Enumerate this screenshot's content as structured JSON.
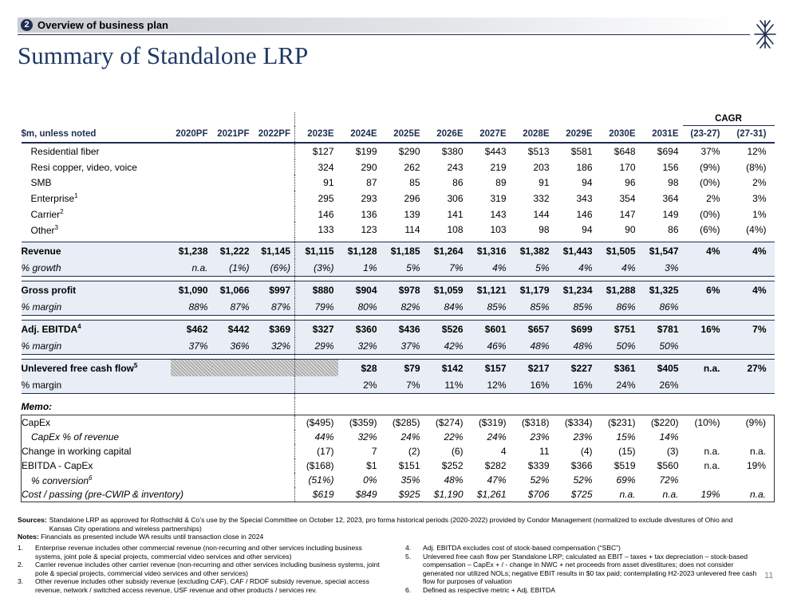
{
  "header": {
    "section_number": "2",
    "section": "Overview of business plan",
    "title": "Summary of Standalone LRP",
    "page_number": "11"
  },
  "table": {
    "cagr": "CAGR",
    "label": "$m, unless noted",
    "columns": [
      "2020PF",
      "2021PF",
      "2022PF",
      "2023E",
      "2024E",
      "2025E",
      "2026E",
      "2027E",
      "2028E",
      "2029E",
      "2030E",
      "2031E",
      "(23-27)",
      "(27-31)"
    ],
    "detail_rows": [
      {
        "label": "Residential fiber",
        "cells": [
          null,
          null,
          null,
          "$127",
          "$199",
          "$290",
          "$380",
          "$443",
          "$513",
          "$581",
          "$648",
          "$694",
          "37%",
          "12%"
        ]
      },
      {
        "label": "Resi copper, video, voice",
        "cells": [
          null,
          null,
          null,
          "324",
          "290",
          "262",
          "243",
          "219",
          "203",
          "186",
          "170",
          "156",
          "(9%)",
          "(8%)"
        ]
      },
      {
        "label": "SMB",
        "cells": [
          null,
          null,
          null,
          "91",
          "87",
          "85",
          "86",
          "89",
          "91",
          "94",
          "96",
          "98",
          "(0%)",
          "2%"
        ]
      },
      {
        "label": "Enterprise",
        "note": "1",
        "cells": [
          null,
          null,
          null,
          "295",
          "293",
          "296",
          "306",
          "319",
          "332",
          "343",
          "354",
          "364",
          "2%",
          "3%"
        ]
      },
      {
        "label": "Carrier",
        "note": "2",
        "cells": [
          null,
          null,
          null,
          "146",
          "136",
          "139",
          "141",
          "143",
          "144",
          "146",
          "147",
          "149",
          "(0%)",
          "1%"
        ]
      },
      {
        "label": "Other",
        "note": "3",
        "cells": [
          null,
          null,
          null,
          "133",
          "123",
          "114",
          "108",
          "103",
          "98",
          "94",
          "90",
          "86",
          "(6%)",
          "(4%)"
        ]
      }
    ],
    "summary_blocks": [
      [
        {
          "label": "Revenue",
          "cells": [
            "$1,238",
            "$1,222",
            "$1,145",
            "$1,115",
            "$1,128",
            "$1,185",
            "$1,264",
            "$1,316",
            "$1,382",
            "$1,443",
            "$1,505",
            "$1,547",
            "4%",
            "4%"
          ]
        },
        {
          "label": "% growth",
          "cells": [
            "n.a.",
            "(1%)",
            "(6%)",
            "(3%)",
            "1%",
            "5%",
            "7%",
            "4%",
            "5%",
            "4%",
            "4%",
            "3%",
            null,
            null
          ]
        }
      ],
      [
        {
          "label": "Gross profit",
          "cells": [
            "$1,090",
            "$1,066",
            "$997",
            "$880",
            "$904",
            "$978",
            "$1,059",
            "$1,121",
            "$1,179",
            "$1,234",
            "$1,288",
            "$1,325",
            "6%",
            "4%"
          ]
        },
        {
          "label": "% margin",
          "cells": [
            "88%",
            "87%",
            "87%",
            "79%",
            "80%",
            "82%",
            "84%",
            "85%",
            "85%",
            "85%",
            "86%",
            "86%",
            null,
            null
          ]
        }
      ],
      [
        {
          "label": "Adj. EBITDA",
          "note": "4",
          "cells": [
            "$462",
            "$442",
            "$369",
            "$327",
            "$360",
            "$436",
            "$526",
            "$601",
            "$657",
            "$699",
            "$751",
            "$781",
            "16%",
            "7%"
          ]
        },
        {
          "label": "% margin",
          "cells": [
            "37%",
            "36%",
            "32%",
            "29%",
            "32%",
            "37%",
            "42%",
            "46%",
            "48%",
            "48%",
            "50%",
            "50%",
            null,
            null
          ]
        }
      ],
      [
        {
          "label": "Unlevered free cash flow",
          "note": "5",
          "cells": [
            null,
            null,
            null,
            null,
            "$28",
            "$79",
            "$142",
            "$157",
            "$217",
            "$227",
            "$361",
            "$405",
            "n.a.",
            "27%"
          ]
        },
        {
          "label": "% margin",
          "cells": [
            null,
            null,
            null,
            null,
            "2%",
            "7%",
            "11%",
            "12%",
            "16%",
            "16%",
            "24%",
            "26%",
            null,
            null
          ]
        }
      ]
    ],
    "memo": {
      "label": "Memo:",
      "rows": [
        {
          "label": "CapEx",
          "cells": [
            null,
            null,
            null,
            "($495)",
            "($359)",
            "($285)",
            "($274)",
            "($319)",
            "($318)",
            "($334)",
            "($231)",
            "($220)",
            "(10%)",
            "(9%)"
          ]
        },
        {
          "label": "CapEx % of revenue",
          "cells": [
            null,
            null,
            null,
            "44%",
            "32%",
            "24%",
            "22%",
            "24%",
            "23%",
            "23%",
            "15%",
            "14%",
            null,
            null
          ]
        },
        {
          "label": "Change in working capital",
          "cells": [
            null,
            null,
            null,
            "(17)",
            "7",
            "(2)",
            "(6)",
            "4",
            "11",
            "(4)",
            "(15)",
            "(3)",
            "n.a.",
            "n.a."
          ]
        },
        {
          "label": "EBITDA - CapEx",
          "cells": [
            null,
            null,
            null,
            "($168)",
            "$1",
            "$151",
            "$252",
            "$282",
            "$339",
            "$366",
            "$519",
            "$560",
            "n.a.",
            "19%"
          ]
        },
        {
          "label": "% conversion",
          "note": "6",
          "cells": [
            null,
            null,
            null,
            "(51%)",
            "0%",
            "35%",
            "48%",
            "47%",
            "52%",
            "52%",
            "69%",
            "72%",
            null,
            null
          ]
        },
        {
          "label": "Cost / passing (pre-CWIP & inventory)",
          "cells": [
            null,
            null,
            null,
            "$619",
            "$849",
            "$925",
            "$1,190",
            "$1,261",
            "$706",
            "$725",
            "n.a.",
            "n.a.",
            "19%",
            "n.a."
          ]
        }
      ]
    }
  },
  "footer": {
    "sources": {
      "label": "Sources:",
      "text": "Standalone LRP as approved for Rothschild & Co’s use by the Special Committee on October 12, 2023, pro forma historical periods (2020-2022) provided by Condor Management (normalized to exclude divestures of Ohio and Kansas City operations and wireless partnerships)"
    },
    "notes": {
      "label": "Notes:",
      "text": "Financials as presented include WA results until transaction close in 2024"
    },
    "footnotes": [
      {
        "num": "1.",
        "text": "Enterprise revenue includes other commercial revenue (non-recurring and other services including business systems, joint pole & special projects, commercial video services and other services)"
      },
      {
        "num": "2.",
        "text": "Carrier revenue includes other carrier revenue (non-recurring and other services including business systems, joint pole & special projects, commercial video services and other services)"
      },
      {
        "num": "3.",
        "text": "Other revenue includes other subsidy revenue (excluding CAF), CAF / RDOF subsidy revenue, special access revenue, network / switched access revenue, USF revenue and other products / services rev."
      },
      {
        "num": "4.",
        "text": "Adj. EBITDA excludes cost of stock-based compensation (“SBC”)"
      },
      {
        "num": "5.",
        "text": "Unlevered free cash flow per Standalone LRP; calculated as EBIT – taxes + tax depreciation – stock-based compensation – CapEx + / - change in NWC + net proceeds from asset divestitures; does not consider generated nor utilized NOLs; negative EBIT results in $0 tax paid; contemplating H2-2023 unlevered free cash flow for purposes of valuation"
      },
      {
        "num": "6.",
        "text": "Defined as respective metric + Adj. EBITDA"
      }
    ]
  }
}
